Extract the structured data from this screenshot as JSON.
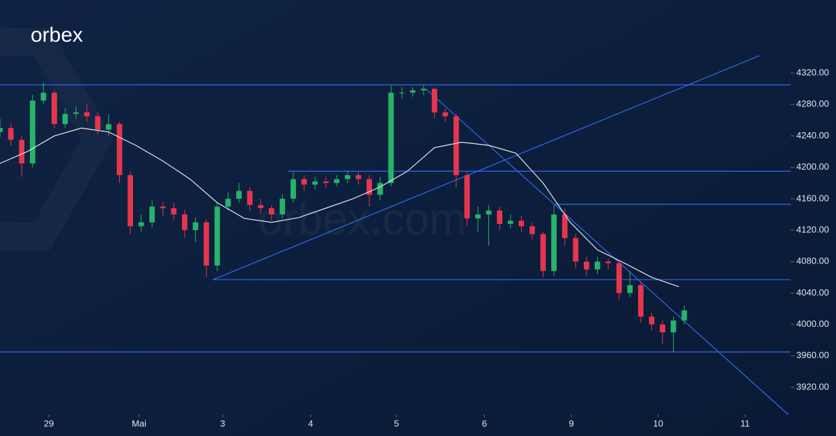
{
  "chart_data": {
    "type": "candlestick",
    "brand": "orbex",
    "watermark": "orbex.com",
    "up_color": "#27b36a",
    "down_color": "#e5364d",
    "line_color": "#2f6cf0",
    "ma_color": "#e8e8e8",
    "xlim": [
      0,
      72.8
    ],
    "ylim": [
      3858,
      4413
    ],
    "yticks": [
      {
        "value": 3920,
        "label": "3920.00"
      },
      {
        "value": 3960,
        "label": "3960.00"
      },
      {
        "value": 4000,
        "label": "4000.00"
      },
      {
        "value": 4040,
        "label": "4040.00"
      },
      {
        "value": 4080,
        "label": "4080.00"
      },
      {
        "value": 4120,
        "label": "4120.00"
      },
      {
        "value": 4160,
        "label": "4160.00"
      },
      {
        "value": 4200,
        "label": "4200.00"
      },
      {
        "value": 4240,
        "label": "4240.00"
      },
      {
        "value": 4280,
        "label": "4280.00"
      },
      {
        "value": 4320,
        "label": "4320.00"
      }
    ],
    "xticks": [
      {
        "value": 4.5,
        "label": "29"
      },
      {
        "value": 12.8,
        "label": "Mai"
      },
      {
        "value": 20.5,
        "label": "3"
      },
      {
        "value": 28.6,
        "label": "4"
      },
      {
        "value": 36.5,
        "label": "5"
      },
      {
        "value": 44.6,
        "label": "6"
      },
      {
        "value": 52.6,
        "label": "9"
      },
      {
        "value": 60.6,
        "label": "10"
      },
      {
        "value": 68.6,
        "label": "11"
      }
    ],
    "x": [
      0,
      1,
      2,
      3,
      4,
      5,
      6,
      7,
      8,
      9,
      10,
      11,
      12,
      13,
      14,
      15,
      16,
      17,
      18,
      19,
      20,
      21,
      22,
      23,
      24,
      25,
      26,
      27,
      28,
      29,
      30,
      31,
      32,
      33,
      34,
      35,
      36,
      37,
      38,
      39,
      40,
      41,
      42,
      43,
      44,
      45,
      46,
      47,
      48,
      49,
      50,
      51,
      52,
      53,
      54,
      55,
      56,
      57,
      58,
      59,
      60,
      61,
      62,
      63
    ],
    "open": [
      4245,
      4250,
      4235,
      4205,
      4285,
      4295,
      4255,
      4268,
      4270,
      4265,
      4248,
      4255,
      4190,
      4125,
      4130,
      4150,
      4148,
      4140,
      4120,
      4130,
      4075,
      4150,
      4160,
      4170,
      4152,
      4148,
      4140,
      4160,
      4185,
      4178,
      4182,
      4180,
      4185,
      4190,
      4185,
      4165,
      4180,
      4295,
      4295,
      4298,
      4300,
      4270,
      4265,
      4190,
      4135,
      4140,
      4145,
      4128,
      4132,
      4125,
      4115,
      4068,
      4140,
      4110,
      4080,
      4070,
      4080,
      4078,
      4040,
      4050,
      4010,
      4000,
      3990,
      4005
    ],
    "high": [
      4262,
      4256,
      4240,
      4292,
      4308,
      4298,
      4275,
      4278,
      4280,
      4270,
      4268,
      4258,
      4195,
      4140,
      4158,
      4156,
      4155,
      4146,
      4136,
      4134,
      4156,
      4168,
      4180,
      4175,
      4160,
      4152,
      4166,
      4194,
      4190,
      4188,
      4188,
      4190,
      4196,
      4194,
      4190,
      4188,
      4304,
      4302,
      4302,
      4305,
      4302,
      4275,
      4268,
      4195,
      4150,
      4152,
      4150,
      4140,
      4138,
      4130,
      4118,
      4152,
      4148,
      4115,
      4086,
      4086,
      4084,
      4080,
      4068,
      4055,
      4015,
      4005,
      4010,
      4024
    ],
    "low": [
      4238,
      4228,
      4188,
      4200,
      4280,
      4250,
      4250,
      4262,
      4258,
      4242,
      4240,
      4180,
      4115,
      4118,
      4124,
      4138,
      4132,
      4110,
      4105,
      4060,
      4068,
      4145,
      4155,
      4145,
      4140,
      4132,
      4135,
      4155,
      4170,
      4172,
      4174,
      4176,
      4180,
      4178,
      4150,
      4158,
      4176,
      4288,
      4290,
      4292,
      4262,
      4258,
      4175,
      4125,
      4118,
      4100,
      4120,
      4122,
      4118,
      4108,
      4060,
      4062,
      4100,
      4072,
      4062,
      4064,
      4070,
      4032,
      4035,
      4002,
      3992,
      3975,
      3965,
      4000
    ],
    "close": [
      4250,
      4235,
      4205,
      4285,
      4295,
      4255,
      4268,
      4270,
      4265,
      4248,
      4255,
      4190,
      4125,
      4130,
      4150,
      4148,
      4140,
      4120,
      4130,
      4075,
      4150,
      4160,
      4170,
      4152,
      4148,
      4140,
      4160,
      4185,
      4178,
      4182,
      4180,
      4185,
      4190,
      4185,
      4165,
      4180,
      4295,
      4295,
      4298,
      4300,
      4270,
      4265,
      4190,
      4135,
      4140,
      4145,
      4128,
      4132,
      4125,
      4115,
      4068,
      4140,
      4110,
      4080,
      4070,
      4080,
      4078,
      4040,
      4050,
      4010,
      4000,
      3990,
      4005,
      4018
    ],
    "ma": {
      "x": [
        0,
        2.5,
        5,
        7.5,
        10,
        12.5,
        15,
        17.5,
        20,
        22.5,
        25,
        27.5,
        30,
        32.5,
        35,
        37.5,
        40,
        42.5,
        45,
        47.5,
        50,
        52.5,
        55,
        57.5,
        60,
        62.5
      ],
      "values": [
        4205,
        4220,
        4240,
        4250,
        4245,
        4228,
        4208,
        4185,
        4155,
        4135,
        4130,
        4136,
        4148,
        4160,
        4175,
        4195,
        4225,
        4232,
        4228,
        4218,
        4180,
        4130,
        4095,
        4078,
        4060,
        4048
      ]
    },
    "lines": [
      {
        "x": [
          0,
          72.8
        ],
        "y": [
          4305,
          4305
        ]
      },
      {
        "x": [
          26.5,
          72.8
        ],
        "y": [
          4195,
          4195
        ]
      },
      {
        "x": [
          51,
          72.8
        ],
        "y": [
          4153,
          4153
        ]
      },
      {
        "x": [
          19.6,
          72.8
        ],
        "y": [
          4057,
          4057
        ]
      },
      {
        "x": [
          0,
          72.8
        ],
        "y": [
          3965,
          3965
        ]
      },
      {
        "x": [
          19.6,
          69.9
        ],
        "y": [
          4057,
          4342
        ]
      },
      {
        "x": [
          39.2,
          72.6
        ],
        "y": [
          4300,
          3885
        ]
      }
    ]
  }
}
